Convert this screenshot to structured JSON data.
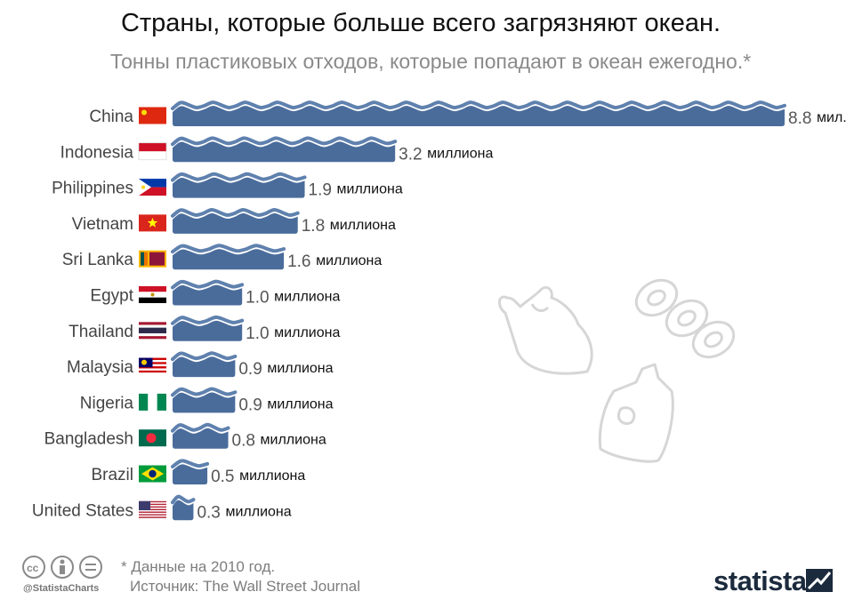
{
  "title": "Страны, которые больше всего загрязняют океан.",
  "subtitle": "Тонны пластиковых отходов, которые попадают в океан ежегодно.*",
  "footer": {
    "note": "* Данные на 2010 год.",
    "source": "Источник: The Wall Street Journal",
    "handle": "@StatistaCharts",
    "brand": "statista"
  },
  "colors": {
    "bar": "#4a6c9b",
    "wave": "#5f81ae",
    "line_art": "#d6d6d6"
  },
  "icons": [
    "plastic-bag-icon",
    "six-pack-rings-icon",
    "detergent-bottle-icon",
    "cc-icon",
    "by-icon",
    "nd-icon",
    "statista-logo-icon"
  ],
  "chart_data": {
    "type": "bar",
    "orientation": "horizontal",
    "title": "Страны, которые больше всего загрязняют океан.",
    "subtitle": "Тонны пластиковых отходов, которые попадают в океан ежегодно.*",
    "categories": [
      "China",
      "Indonesia",
      "Philippines",
      "Vietnam",
      "Sri Lanka",
      "Egypt",
      "Thailand",
      "Malaysia",
      "Nigeria",
      "Bangladesh",
      "Brazil",
      "United States"
    ],
    "values": [
      8.8,
      3.2,
      1.9,
      1.8,
      1.6,
      1.0,
      1.0,
      0.9,
      0.9,
      0.8,
      0.5,
      0.3
    ],
    "value_labels": [
      "8.8",
      "3.2",
      "1.9",
      "1.8",
      "1.6",
      "1.0",
      "1.0",
      "0.9",
      "0.9",
      "0.8",
      "0.5",
      "0.3"
    ],
    "unit_labels": [
      "мил.",
      "миллиона",
      "миллиона",
      "миллиона",
      "миллиона",
      "миллиона",
      "миллиона",
      "миллиона",
      "миллиона",
      "миллиона",
      "миллиона",
      "миллиона"
    ],
    "flags": [
      "china-flag",
      "indonesia-flag",
      "philippines-flag",
      "vietnam-flag",
      "sri-lanka-flag",
      "egypt-flag",
      "thailand-flag",
      "malaysia-flag",
      "nigeria-flag",
      "bangladesh-flag",
      "brazil-flag",
      "united-states-flag"
    ],
    "xlim": [
      0,
      8.8
    ],
    "grid": false,
    "legend": "none"
  }
}
